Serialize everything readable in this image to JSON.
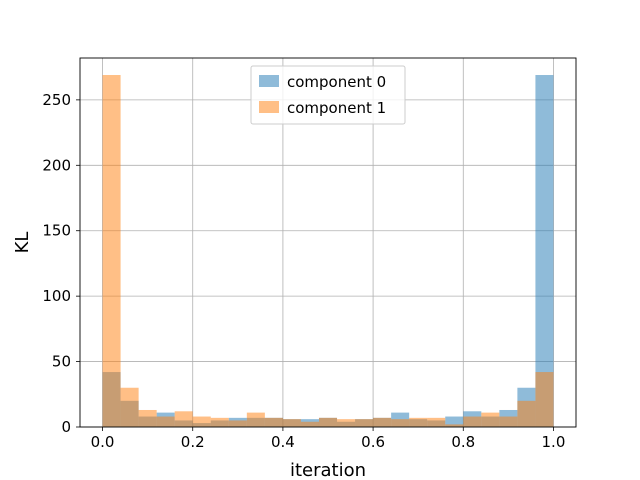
{
  "chart_data": {
    "type": "bar",
    "subtype": "overlaid-histogram",
    "xlabel": "iteration",
    "ylabel": "KL",
    "xlim": [
      -0.05,
      1.05
    ],
    "ylim": [
      0,
      282
    ],
    "grid": true,
    "legend_position": "top-center",
    "bin_edges": [
      0.0,
      0.04,
      0.08,
      0.12,
      0.16,
      0.2,
      0.24,
      0.28,
      0.32,
      0.36,
      0.4,
      0.44,
      0.48,
      0.52,
      0.56,
      0.6,
      0.64,
      0.68,
      0.72,
      0.76,
      0.8,
      0.84,
      0.88,
      0.92,
      0.96,
      1.0
    ],
    "x_ticks": [
      0.0,
      0.2,
      0.4,
      0.6,
      0.8,
      1.0
    ],
    "x_tick_labels": [
      "0.0",
      "0.2",
      "0.4",
      "0.6",
      "0.8",
      "1.0"
    ],
    "y_ticks": [
      0,
      50,
      100,
      150,
      200,
      250
    ],
    "y_tick_labels": [
      "0",
      "50",
      "100",
      "150",
      "200",
      "250"
    ],
    "series": [
      {
        "name": "component 0",
        "color": "#1f77b4",
        "values": [
          42,
          20,
          8,
          11,
          5,
          3,
          5,
          7,
          7,
          7,
          6,
          6,
          7,
          4,
          6,
          7,
          11,
          6,
          5,
          8,
          12,
          8,
          13,
          30,
          269
        ]
      },
      {
        "name": "component 1",
        "color": "#ff7f0e",
        "values": [
          269,
          30,
          13,
          8,
          12,
          8,
          7,
          5,
          11,
          7,
          6,
          4,
          7,
          6,
          6,
          7,
          6,
          7,
          7,
          2,
          8,
          11,
          8,
          20,
          42
        ]
      }
    ]
  }
}
